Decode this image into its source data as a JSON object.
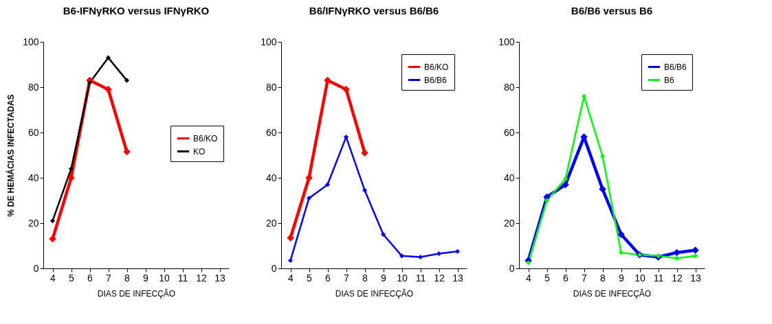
{
  "chart_data": [
    {
      "type": "line",
      "title": "B6-IFNγRKO  versus  IFNγRKO",
      "xlabel": "DIAS DE INFECÇÃO",
      "ylabel": "% DE HEMÁCIAS INFECTADAS",
      "categories": [
        "4",
        "5",
        "6",
        "7",
        "8",
        "9",
        "10",
        "11",
        "12",
        "13"
      ],
      "series": [
        {
          "name": "B6/KO",
          "color": "#ff0000",
          "values": [
            13,
            40,
            83,
            79,
            51.5,
            null,
            null,
            null,
            null,
            null
          ]
        },
        {
          "name": "KO",
          "color": "#000000",
          "values": [
            21,
            44,
            82,
            93,
            83,
            null,
            null,
            null,
            null,
            null
          ]
        }
      ],
      "ylim": [
        0,
        100
      ],
      "yticks": [
        0,
        20,
        40,
        60,
        80,
        100
      ],
      "grid": false,
      "legend": "right",
      "marker": "diamond"
    },
    {
      "type": "line",
      "title": "B6/IFNγRKO versus B6/B6",
      "xlabel": "DIAS DE INFECÇÃO",
      "categories": [
        "4",
        "5",
        "6",
        "7",
        "8",
        "9",
        "10",
        "11",
        "12",
        "13"
      ],
      "series": [
        {
          "name": "B6/KO",
          "color": "#ff0000",
          "values": [
            13.5,
            40,
            83,
            79,
            51,
            null,
            null,
            null,
            null,
            null
          ]
        },
        {
          "name": "B6/B6",
          "color": "#0000ff",
          "values": [
            3.5,
            31,
            37,
            58,
            34.5,
            15,
            5.5,
            5,
            6.5,
            7.5
          ]
        }
      ],
      "ylim": [
        0,
        100
      ],
      "yticks": [
        0,
        20,
        40,
        60,
        80,
        100
      ],
      "grid": false,
      "legend": "top right",
      "marker": "diamond"
    },
    {
      "type": "line",
      "title": "B6/B6 versus B6",
      "xlabel": "DIAS DE INFECÇÃO",
      "categories": [
        "4",
        "5",
        "6",
        "7",
        "8",
        "9",
        "10",
        "11",
        "12",
        "13"
      ],
      "series": [
        {
          "name": "B6/B6",
          "color": "#0000ff",
          "values": [
            3.5,
            31.5,
            37,
            58,
            35,
            15,
            6,
            5,
            7,
            8
          ]
        },
        {
          "name": "B6",
          "color": "#00ff00",
          "values": [
            2.5,
            30,
            39.5,
            76,
            49.5,
            7,
            6,
            5.5,
            4.5,
            5.5
          ]
        }
      ],
      "ylim": [
        0,
        100
      ],
      "yticks": [
        0,
        20,
        40,
        60,
        80,
        100
      ],
      "grid": false,
      "legend": "top right",
      "marker": "diamond"
    }
  ]
}
